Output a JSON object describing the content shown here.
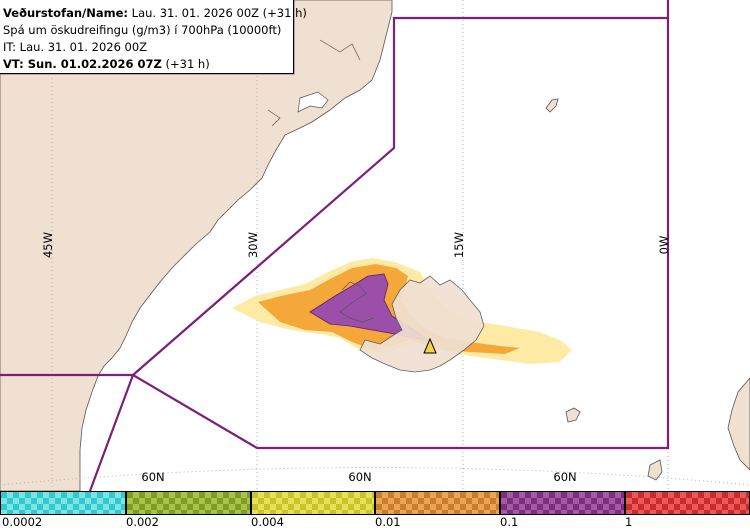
{
  "header": {
    "line1_bold": "Veðurstofan/Name:",
    "line1_rest": " Lau. 31. 01. 2026 00Z (+31 h)",
    "line2": "Spá um öskudreifingu (g/m3) í 700hPa (10000ft)",
    "line3": "IT: Lau. 31. 01. 2026 00Z",
    "line4_bold": "VT: Sun. 01.02.2026 07Z",
    "line4_rest": " (+31 h)"
  },
  "map": {
    "longitude_labels": [
      "45W",
      "30W",
      "15W",
      "0W"
    ],
    "latitude_labels": [
      "60N",
      "60N",
      "60N"
    ],
    "colors": {
      "land": "#f0e0d2",
      "sea": "#ffffff",
      "grid": "#b0b0b0",
      "boundary": "#7a1f7a",
      "coast": "#555555"
    }
  },
  "legend": {
    "swatches": [
      {
        "color": "#2ecad0",
        "alt": "#7fe3e3"
      },
      {
        "color": "#7f9d23",
        "alt": "#a9c24b"
      },
      {
        "color": "#c9c42a",
        "alt": "#e6e05a"
      },
      {
        "color": "#c97e2b",
        "alt": "#e8a553"
      },
      {
        "color": "#7c2f7c",
        "alt": "#a35aa3"
      },
      {
        "color": "#c92b2b",
        "alt": "#e85a5a"
      }
    ],
    "labels": [
      "0.0002",
      "0.002",
      "0.004",
      "0.01",
      "0.1",
      "1"
    ]
  }
}
